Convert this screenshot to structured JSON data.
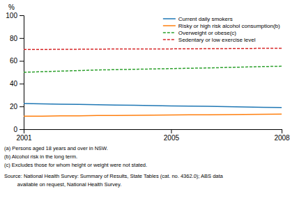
{
  "chart_data": {
    "type": "line",
    "x": [
      2001,
      2001.5,
      2002,
      2002.5,
      2003,
      2003.5,
      2004,
      2004.5,
      2005,
      2005.5,
      2006,
      2006.5,
      2007,
      2007.5,
      2008
    ],
    "series": [
      {
        "name": "Current daily smokers",
        "line_style": "solid",
        "values": [
          22.5,
          22.3,
          22.0,
          21.8,
          21.5,
          21.2,
          21.0,
          20.8,
          20.5,
          20.3,
          20.1,
          19.8,
          19.5,
          19.2,
          19.0
        ]
      },
      {
        "name": "Risky or high risk alcohol consumption(b)",
        "line_style": "solid",
        "values": [
          11.5,
          11.5,
          11.7,
          11.8,
          12.0,
          12.1,
          12.2,
          12.4,
          12.5,
          12.6,
          12.7,
          12.8,
          13.0,
          13.1,
          13.2
        ]
      },
      {
        "name": "Overweight or obese(c)",
        "line_style": "dashed",
        "values": [
          50.0,
          50.5,
          51.0,
          51.5,
          52.0,
          52.3,
          52.6,
          52.9,
          53.2,
          53.5,
          53.8,
          54.2,
          54.6,
          55.0,
          55.3
        ]
      },
      {
        "name": "Sedentary or low exercise level",
        "line_style": "dashed",
        "values": [
          70.0,
          70.0,
          70.1,
          70.2,
          70.3,
          70.4,
          70.4,
          70.5,
          70.5,
          70.6,
          70.7,
          70.8,
          70.9,
          71.0,
          71.1
        ]
      }
    ],
    "ylabel": "%",
    "xlim": [
      2001,
      2008
    ],
    "ylim": [
      0,
      100
    ],
    "xticks": [
      2001,
      2005,
      2008
    ],
    "yticks": [
      0,
      20,
      40,
      60,
      80,
      100
    ],
    "grid": false,
    "legend": "upper right",
    "annotations": [
      "(a) Persons aged 18 years and over in NSW.",
      "(b) Alcohol risk in the long term.",
      "(c) Excludes those for whom height or weight were not stated.",
      "Source: National Health Survey: Summary of Results, State Tables (cat. no. 4362.0); ABS data",
      "         available on request, National Health Survey."
    ]
  }
}
